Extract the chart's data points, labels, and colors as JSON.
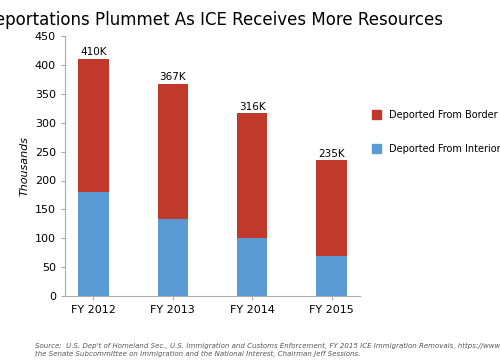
{
  "categories": [
    "FY 2012",
    "FY 2013",
    "FY 2014",
    "FY 2015"
  ],
  "interior": [
    180,
    133,
    100,
    69
  ],
  "border": [
    230,
    234,
    216,
    166
  ],
  "totals_labels": [
    "410K",
    "367K",
    "316K",
    "235K"
  ],
  "color_interior": "#5B9BD5",
  "color_border": "#C0392B",
  "title": "Deportations Plummet As ICE Receives More Resources",
  "ylabel": "Thousands",
  "ylim": [
    0,
    450
  ],
  "yticks": [
    0,
    50,
    100,
    150,
    200,
    250,
    300,
    350,
    400,
    450
  ],
  "legend_border": "Deported From Border",
  "legend_interior": "Deported From Interior",
  "source_text": "Source:  U.S. Dep't of Homeland Sec., U.S. Immigration and Customs Enforcement, FY 2015 ICE Immigration Removals, https://www.ice.gov/removal-statistics.  Chart produced by\nthe Senate Subcommittee on Immigration and the National Interest, Chairman Jeff Sessions.",
  "title_fontsize": 12,
  "label_fontsize": 7.5,
  "source_fontsize": 5,
  "bg_color": "#FFFFFF"
}
